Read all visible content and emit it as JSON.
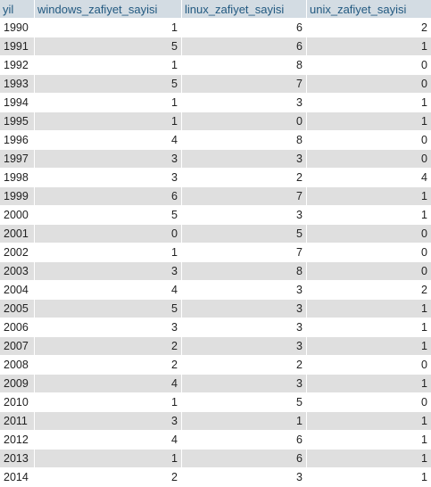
{
  "columns": [
    "yil",
    "windows_zafiyet_sayisi",
    "linux_zafiyet_sayisi",
    "unix_zafiyet_sayisi"
  ],
  "rows": [
    [
      "1990",
      "1",
      "6",
      "2"
    ],
    [
      "1991",
      "5",
      "6",
      "1"
    ],
    [
      "1992",
      "1",
      "8",
      "0"
    ],
    [
      "1993",
      "5",
      "7",
      "0"
    ],
    [
      "1994",
      "1",
      "3",
      "1"
    ],
    [
      "1995",
      "1",
      "0",
      "1"
    ],
    [
      "1996",
      "4",
      "8",
      "0"
    ],
    [
      "1997",
      "3",
      "3",
      "0"
    ],
    [
      "1998",
      "3",
      "2",
      "4"
    ],
    [
      "1999",
      "6",
      "7",
      "1"
    ],
    [
      "2000",
      "5",
      "3",
      "1"
    ],
    [
      "2001",
      "0",
      "5",
      "0"
    ],
    [
      "2002",
      "1",
      "7",
      "0"
    ],
    [
      "2003",
      "3",
      "8",
      "0"
    ],
    [
      "2004",
      "4",
      "3",
      "2"
    ],
    [
      "2005",
      "5",
      "3",
      "1"
    ],
    [
      "2006",
      "3",
      "3",
      "1"
    ],
    [
      "2007",
      "2",
      "3",
      "1"
    ],
    [
      "2008",
      "2",
      "2",
      "0"
    ],
    [
      "2009",
      "4",
      "3",
      "1"
    ],
    [
      "2010",
      "1",
      "5",
      "0"
    ],
    [
      "2011",
      "3",
      "1",
      "1"
    ],
    [
      "2012",
      "4",
      "6",
      "1"
    ],
    [
      "2013",
      "1",
      "6",
      "1"
    ],
    [
      "2014",
      "2",
      "3",
      "1"
    ]
  ],
  "colors": {
    "header_bg": "#d3dce3",
    "header_text": "#235a81",
    "row_odd": "#ffffff",
    "row_even": "#dfdfdf"
  }
}
